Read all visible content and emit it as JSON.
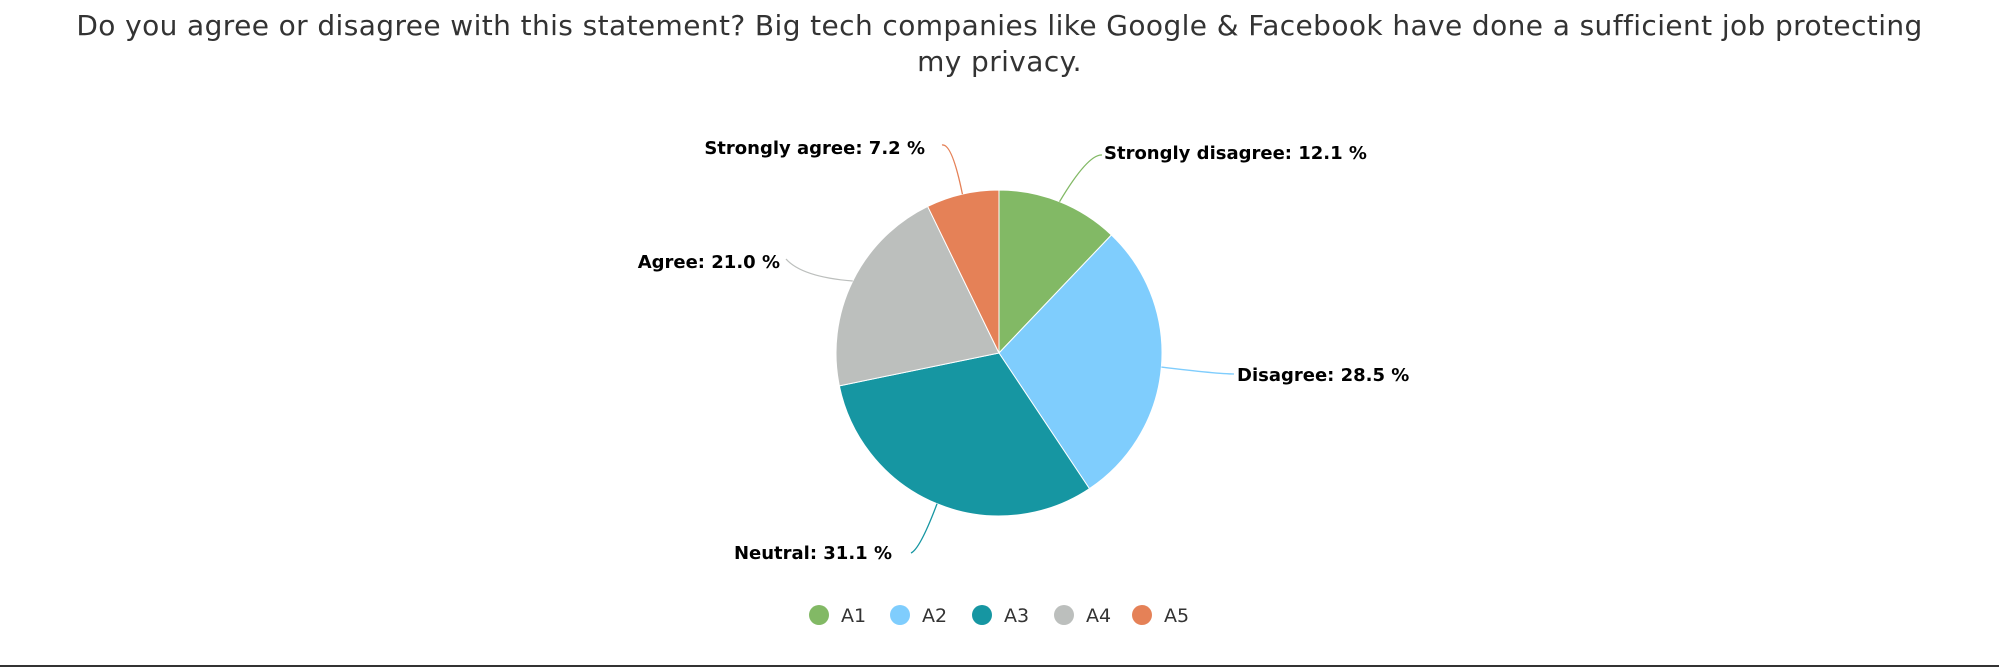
{
  "chart_data": {
    "type": "pie",
    "title": "Do you agree or disagree with this statement? Big tech companies like Google & Facebook have done a sufficient job protecting my privacy.",
    "start_angle_deg": 0,
    "direction": "clockwise",
    "slices": [
      {
        "key": "A1",
        "label": "Strongly disagree",
        "value": 12.1,
        "color": "#82b965"
      },
      {
        "key": "A2",
        "label": "Disagree",
        "value": 28.5,
        "color": "#7fcdfd"
      },
      {
        "key": "A3",
        "label": "Neutral",
        "value": 31.1,
        "color": "#1696a2"
      },
      {
        "key": "A4",
        "label": "Agree",
        "value": 21.0,
        "color": "#bcbfbd"
      },
      {
        "key": "A5",
        "label": "Strongly agree",
        "value": 7.2,
        "color": "#e58157"
      }
    ],
    "value_suffix": " %",
    "legend": {
      "position": "bottom",
      "entries": [
        "A1",
        "A2",
        "A3",
        "A4",
        "A5"
      ]
    }
  }
}
